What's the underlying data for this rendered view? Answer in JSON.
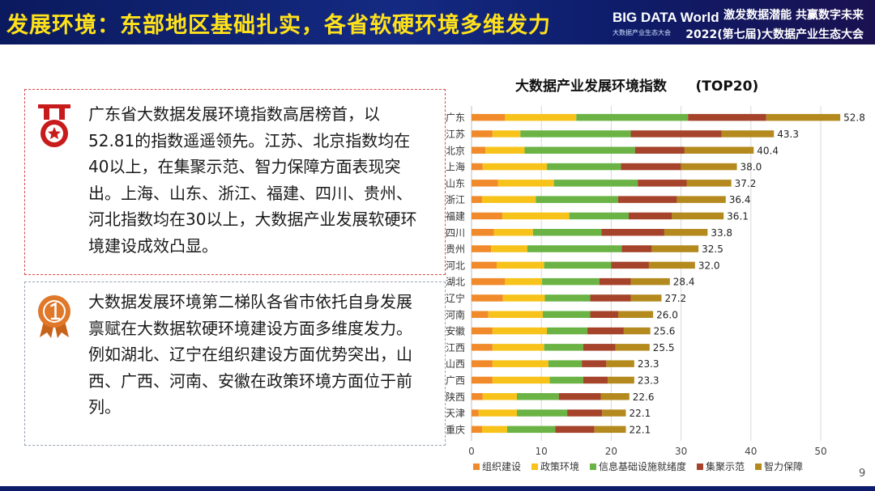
{
  "header": {
    "title": "发展环境：东部地区基础扎实，各省软硬环境多维发力",
    "logo_main": "BIG DATA World",
    "logo_sub": "大数据产业生态大会",
    "slogan_line1": "激发数据潜能 共赢数字未来",
    "slogan_line2": "2022(第七届)大数据产业生态大会"
  },
  "left_panel": {
    "block1": {
      "icon": "medal-ribbon-icon",
      "text": "广东省大数据发展环境指数高居榜首，以52.81的指数遥遥领先。江苏、北京指数均在40以上，在集聚示范、智力保障方面表现突出。上海、山东、浙江、福建、四川、贵州、河北指数均在30以上，大数据产业发展软硬环境建设成效凸显。"
    },
    "block2": {
      "icon": "medal-number-one-icon",
      "text": "大数据发展环境第二梯队各省市依托自身发展禀赋在大数据软硬环境建设方面多维度发力。例如湖北、辽宁在组织建设方面优势突出，山西、广西、河南、安徽在政策环境方面位于前列。"
    }
  },
  "chart_title": "大数据产业发展环境指数      (TOP20)",
  "chart_data": {
    "type": "bar",
    "orientation": "horizontal",
    "stacked": true,
    "categories": [
      "广东",
      "江苏",
      "北京",
      "上海",
      "山东",
      "浙江",
      "福建",
      "四川",
      "贵州",
      "河北",
      "湖北",
      "辽宁",
      "河南",
      "安徽",
      "江西",
      "山西",
      "广西",
      "陕西",
      "天津",
      "重庆"
    ],
    "series": [
      {
        "name": "组织建设",
        "color": "#f08a2b",
        "values": [
          4.8,
          3.0,
          2.0,
          1.6,
          3.8,
          1.5,
          4.4,
          3.2,
          2.8,
          3.6,
          4.8,
          4.5,
          2.4,
          3.0,
          3.0,
          3.0,
          3.0,
          1.6,
          1.0,
          1.5
        ]
      },
      {
        "name": "政策环境",
        "color": "#f7c31a",
        "values": [
          10.2,
          4.0,
          5.6,
          9.2,
          8.0,
          7.7,
          9.6,
          5.6,
          5.2,
          6.8,
          5.3,
          6.0,
          7.8,
          7.8,
          7.4,
          8.0,
          8.2,
          4.9,
          5.5,
          3.6
        ]
      },
      {
        "name": "信息基础设施就绪度",
        "color": "#6ab344",
        "values": [
          16.0,
          15.8,
          15.8,
          10.6,
          12.0,
          11.8,
          8.5,
          9.8,
          13.5,
          9.6,
          8.2,
          6.5,
          6.8,
          5.8,
          5.6,
          4.8,
          4.8,
          6.0,
          7.2,
          6.9
        ]
      },
      {
        "name": "集聚示范",
        "color": "#a5432b",
        "values": [
          11.2,
          13.0,
          7.1,
          8.6,
          7.0,
          8.4,
          6.2,
          9.0,
          4.3,
          5.4,
          4.5,
          5.8,
          4.0,
          5.2,
          4.6,
          3.5,
          3.5,
          6.0,
          5.0,
          5.6
        ]
      },
      {
        "name": "智力保障",
        "color": "#b48a1e",
        "values": [
          10.6,
          7.5,
          9.9,
          8.0,
          6.4,
          7.0,
          7.4,
          6.2,
          6.7,
          6.6,
          5.6,
          4.4,
          5.0,
          3.8,
          4.9,
          4.0,
          3.8,
          4.1,
          3.4,
          4.5
        ]
      }
    ],
    "totals": [
      "52.8",
      "43.3",
      "40.4",
      "38.0",
      "37.2",
      "36.4",
      "36.1",
      "33.8",
      "32.5",
      "32.0",
      "28.4",
      "27.2",
      "26.0",
      "25.6",
      "25.5",
      "23.3",
      "23.3",
      "22.6",
      "22.1",
      "22.1"
    ],
    "xlim": [
      0,
      55
    ],
    "xticks": [
      "0",
      "10",
      "20",
      "30",
      "40",
      "50"
    ],
    "grid": true,
    "legend_position": "bottom"
  },
  "page_number": "9"
}
